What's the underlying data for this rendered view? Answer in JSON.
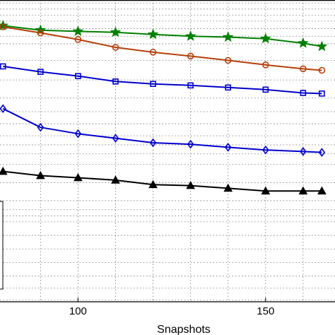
{
  "chart_data": {
    "type": "line",
    "xlabel": "Snapshots",
    "ylabel": "",
    "title": "",
    "xlim": [
      79.2,
      168.5
    ],
    "ylim": [
      0,
      1
    ],
    "x_ticks": [
      100,
      150
    ],
    "grid": true,
    "grid_style": "dotted",
    "legend": "left (partially visible, no readable entries)",
    "series": [
      {
        "color": "#008000",
        "marker": "star",
        "x": [
          80,
          90,
          100,
          110,
          120,
          130,
          140,
          150,
          160,
          165
        ],
        "y": [
          0.915,
          0.9,
          0.896,
          0.893,
          0.886,
          0.88,
          0.877,
          0.872,
          0.857,
          0.846
        ]
      },
      {
        "color": "#b5400b",
        "marker": "circle",
        "x": [
          80,
          90,
          100,
          110,
          120,
          130,
          140,
          150,
          160,
          165
        ],
        "y": [
          0.911,
          0.891,
          0.869,
          0.843,
          0.827,
          0.814,
          0.8,
          0.785,
          0.772,
          0.767
        ]
      },
      {
        "color": "#0000cc",
        "marker": "square",
        "x": [
          80,
          90,
          100,
          110,
          120,
          130,
          140,
          150,
          160,
          165
        ],
        "y": [
          0.78,
          0.762,
          0.748,
          0.73,
          0.722,
          0.717,
          0.71,
          0.703,
          0.692,
          0.69
        ]
      },
      {
        "color": "#0000cc",
        "marker": "diamond",
        "x": [
          80,
          90,
          100,
          110,
          120,
          130,
          140,
          150,
          160,
          165
        ],
        "y": [
          0.64,
          0.578,
          0.557,
          0.542,
          0.527,
          0.522,
          0.512,
          0.503,
          0.498,
          0.495
        ]
      },
      {
        "color": "#000000",
        "marker": "triangle",
        "x": [
          80,
          90,
          100,
          110,
          120,
          130,
          140,
          150,
          160,
          165
        ],
        "y": [
          0.432,
          0.418,
          0.411,
          0.403,
          0.388,
          0.385,
          0.376,
          0.367,
          0.367,
          0.367
        ]
      }
    ]
  }
}
